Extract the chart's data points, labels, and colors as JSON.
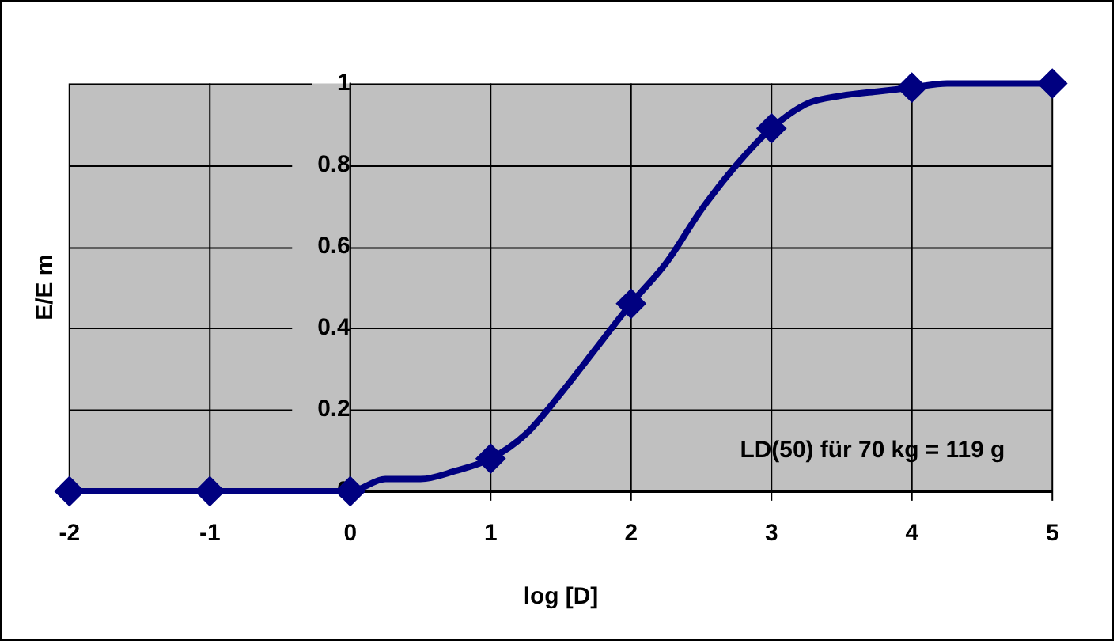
{
  "chart_data": {
    "type": "line",
    "xlabel": "log [D]",
    "ylabel": "E/E m",
    "annotations": [
      "LD(50) für 70 kg = 119 g"
    ],
    "xlim": [
      -2,
      5
    ],
    "xticks": [
      -2,
      -1,
      0,
      1,
      2,
      3,
      4,
      5
    ],
    "ylim": [
      0,
      1
    ],
    "yticks": [
      0,
      0.2,
      0.4,
      0.6,
      0.8,
      1
    ],
    "grid": true,
    "line_style": "solid",
    "series": [
      {
        "type": "line",
        "marker": "none",
        "color": "#000080",
        "x": [
          -2,
          -1,
          0,
          0.25,
          0.5,
          0.75,
          1,
          1.25,
          1.5,
          1.75,
          2,
          2.25,
          2.5,
          2.75,
          3,
          3.25,
          3.5,
          3.75,
          4,
          4.25,
          5
        ],
        "values": [
          0,
          0,
          0,
          0.03,
          0.03,
          0.05,
          0.08,
          0.14,
          0.24,
          0.35,
          0.46,
          0.56,
          0.69,
          0.8,
          0.89,
          0.95,
          0.97,
          0.98,
          0.99,
          1,
          1
        ]
      },
      {
        "type": "scatter",
        "marker": "diamond",
        "color": "#000080",
        "x": [
          -2,
          -1,
          0,
          1,
          2,
          3,
          4,
          5
        ],
        "values": [
          0,
          0,
          0,
          0.08,
          0.46,
          0.89,
          0.99,
          1
        ]
      }
    ]
  }
}
